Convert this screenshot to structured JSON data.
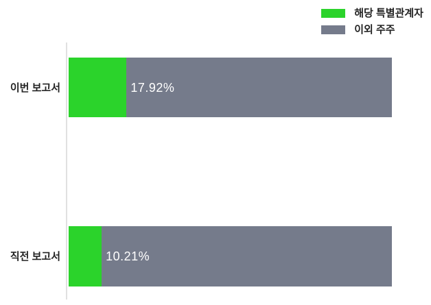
{
  "chart_data": {
    "type": "bar",
    "orientation": "horizontal",
    "stacked": true,
    "title": "",
    "xlabel": "",
    "ylabel": "",
    "xlim": [
      0,
      100
    ],
    "grid": false,
    "legend_position": "top-right",
    "categories": [
      "이번 보고서",
      "직전 보고서"
    ],
    "series": [
      {
        "name": "해당 특별관계자",
        "color": "#2bd32b",
        "values": [
          17.92,
          10.21
        ]
      },
      {
        "name": "이외 주주",
        "color": "#757b8b",
        "values": [
          82.08,
          89.79
        ]
      }
    ],
    "value_labels": [
      "17.92%",
      "10.21%"
    ]
  },
  "colors": {
    "axis_line": "#e1e1e1",
    "category_text": "#222222",
    "legend_text": "#222222",
    "value_text": "#ffffff",
    "background": "#ffffff"
  }
}
